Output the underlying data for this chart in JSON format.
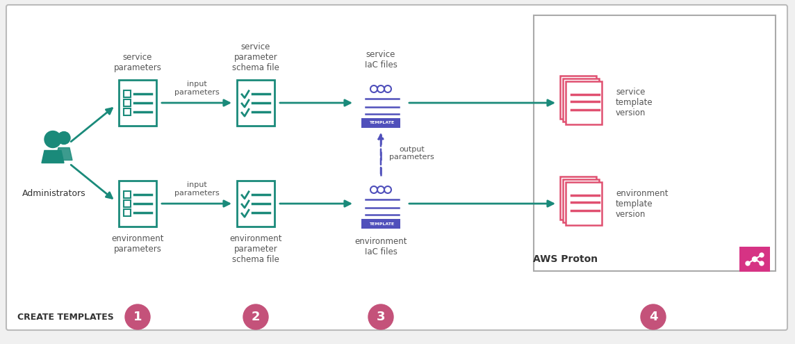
{
  "bg_color": "#f0f0f0",
  "box_bg": "#ffffff",
  "teal": "#1a8a7a",
  "pink": "#d63384",
  "pink_light": "#e05070",
  "pink_circle": "#c4527a",
  "blue_template": "#5050bb",
  "border_color": "#cccccc",
  "title_text": "CREATE TEMPLATES",
  "admin_label": "Administrators",
  "step_labels": [
    "1",
    "2",
    "3",
    "4"
  ],
  "col1_top_label": "service\nparameters",
  "col1_bot_label": "environment\nparameters",
  "col2_top_label": "service\nparameter\nschema file",
  "col2_bot_label": "environment\nparameter\nschema file",
  "col3_top_label": "service\nIaC files",
  "col3_bot_label": "environment\nIaC files",
  "col4_top_label": "service\ntemplate\nversion",
  "col4_bot_label": "environment\ntemplate\nversion",
  "arrow_label_top": "input\nparameters",
  "arrow_label_bot": "input\nparameters",
  "output_label": "output\nparameters",
  "aws_proton_label": "AWS Proton"
}
